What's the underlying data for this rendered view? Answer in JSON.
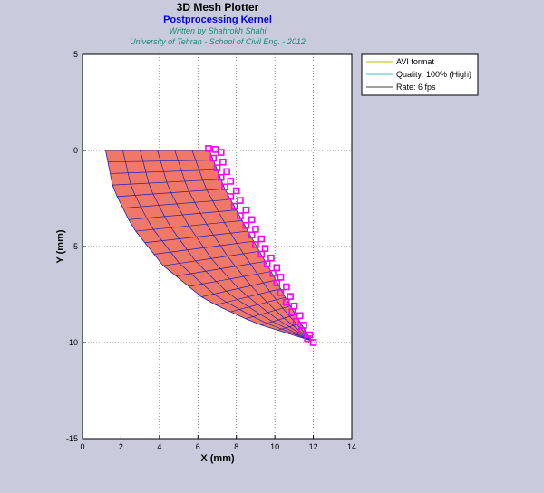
{
  "header": {
    "title": "3D Mesh Plotter",
    "subtitle": "Postprocessing Kernel",
    "author": "Written by Shahrokh Shahi",
    "affiliation": "University of Tehran - School of Civil Eng.  - 2012"
  },
  "legend": {
    "items": [
      "AVI format",
      "Quality: 100% (High)",
      "Rate: 6 fps"
    ],
    "colors": [
      "#b8b800",
      "#40c0c0",
      "#404040"
    ]
  },
  "colors": {
    "background": "#c9cbdc",
    "mesh_fill": "#f07868",
    "mesh_lines": "#2020b0",
    "markers": "#ff00ff"
  },
  "chart_data": {
    "type": "mesh",
    "xlabel": "X (mm)",
    "ylabel": "Y (mm)",
    "xlim": [
      0,
      14
    ],
    "ylim": [
      -15,
      5
    ],
    "xticks": [
      0,
      2,
      4,
      6,
      8,
      10,
      12,
      14
    ],
    "yticks": [
      5,
      0,
      -5,
      -10,
      -15
    ],
    "grid": true,
    "legend_position": "outside-top-right",
    "mesh": {
      "radial_divisions": 6,
      "arc_divisions": 20,
      "top_edge": {
        "x_start": 1.2,
        "x_end": 6.6,
        "y": 0
      },
      "inner_boundary": [
        [
          6.6,
          0
        ],
        [
          7.4,
          -2.0
        ],
        [
          8.6,
          -4.2
        ],
        [
          9.8,
          -6.3
        ],
        [
          10.8,
          -8.1
        ],
        [
          11.9,
          -9.9
        ]
      ],
      "outer_boundary": [
        [
          1.2,
          0
        ],
        [
          1.6,
          -2.0
        ],
        [
          2.6,
          -4.0
        ],
        [
          4.2,
          -6.0
        ],
        [
          6.4,
          -7.8
        ],
        [
          9.0,
          -9.0
        ],
        [
          11.9,
          -9.9
        ]
      ]
    },
    "markers": {
      "symbol": "square",
      "points": [
        [
          6.55,
          0.1
        ],
        [
          6.9,
          0.05
        ],
        [
          7.2,
          -0.1
        ],
        [
          6.8,
          -0.4
        ],
        [
          7.3,
          -0.6
        ],
        [
          7.0,
          -0.9
        ],
        [
          7.5,
          -1.1
        ],
        [
          7.2,
          -1.4
        ],
        [
          7.7,
          -1.6
        ],
        [
          7.4,
          -1.9
        ],
        [
          8.0,
          -2.1
        ],
        [
          7.7,
          -2.4
        ],
        [
          8.2,
          -2.6
        ],
        [
          7.9,
          -2.9
        ],
        [
          8.5,
          -3.1
        ],
        [
          8.2,
          -3.4
        ],
        [
          8.8,
          -3.6
        ],
        [
          8.5,
          -3.9
        ],
        [
          9.0,
          -4.1
        ],
        [
          8.8,
          -4.4
        ],
        [
          9.3,
          -4.6
        ],
        [
          9.0,
          -4.9
        ],
        [
          9.5,
          -5.1
        ],
        [
          9.3,
          -5.4
        ],
        [
          9.8,
          -5.6
        ],
        [
          9.6,
          -5.9
        ],
        [
          10.1,
          -6.1
        ],
        [
          9.9,
          -6.4
        ],
        [
          10.3,
          -6.6
        ],
        [
          10.1,
          -6.9
        ],
        [
          10.6,
          -7.1
        ],
        [
          10.3,
          -7.4
        ],
        [
          10.8,
          -7.6
        ],
        [
          10.6,
          -7.9
        ],
        [
          11.0,
          -8.1
        ],
        [
          10.9,
          -8.4
        ],
        [
          11.3,
          -8.6
        ],
        [
          11.1,
          -8.9
        ],
        [
          11.5,
          -9.1
        ],
        [
          11.4,
          -9.4
        ],
        [
          11.8,
          -9.6
        ],
        [
          11.7,
          -9.8
        ],
        [
          12.0,
          -10.0
        ]
      ]
    }
  }
}
